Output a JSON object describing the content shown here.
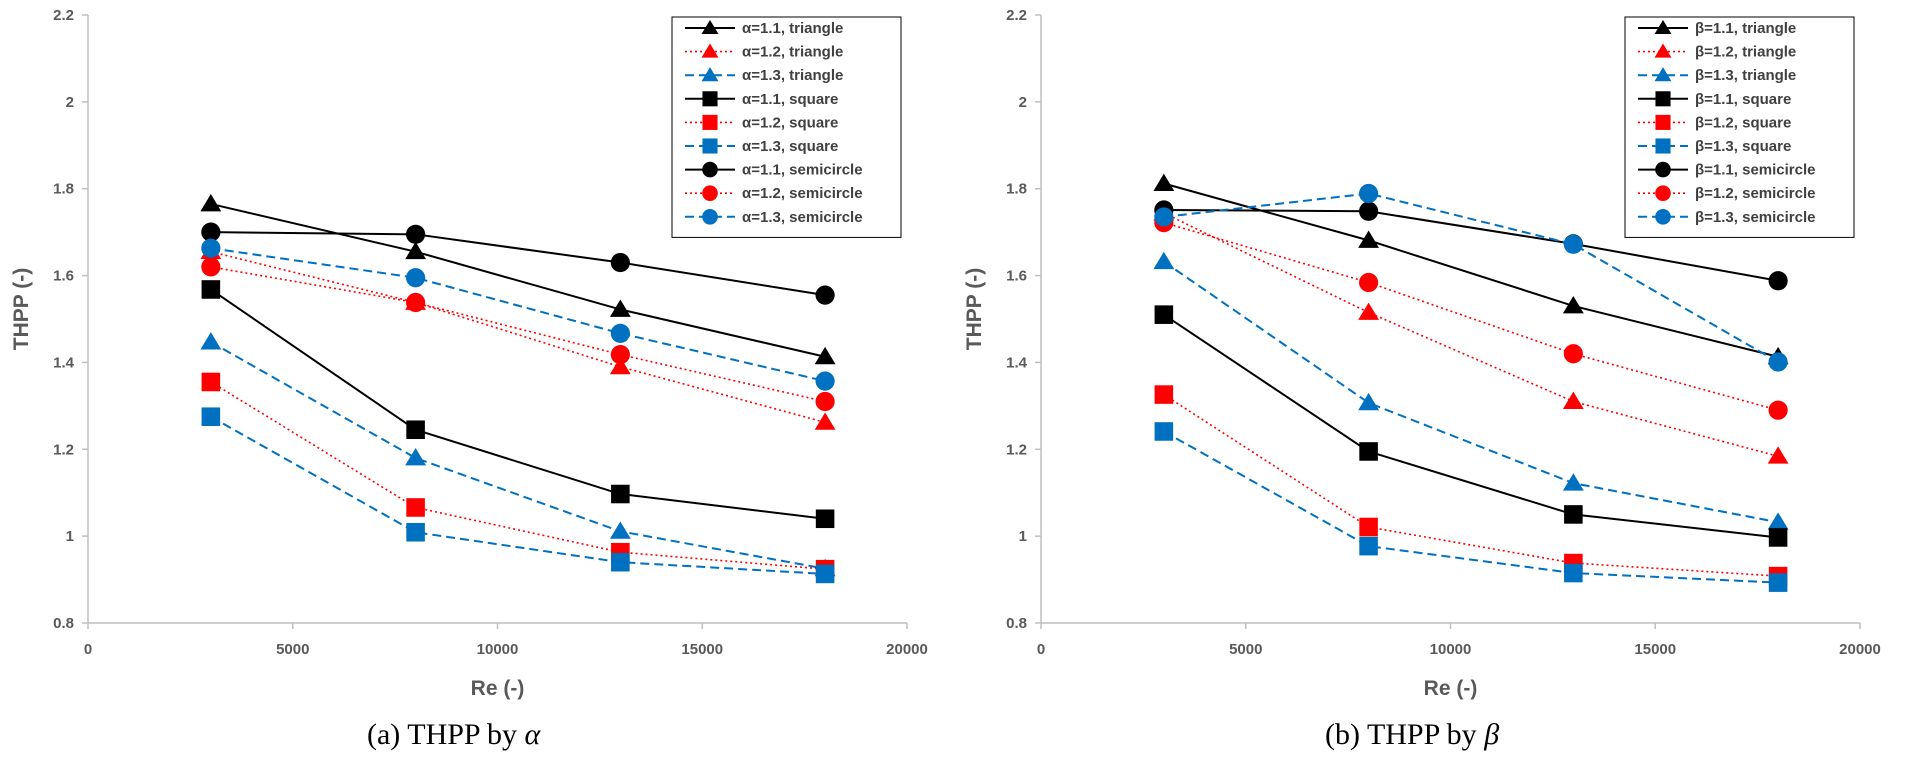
{
  "chart_data": [
    {
      "type": "line",
      "xlabel": "Re (-)",
      "ylabel": "THPP (-)",
      "xlim": [
        0,
        20000
      ],
      "ylim": [
        0.8,
        2.2
      ],
      "xticks": [
        0,
        5000,
        10000,
        15000,
        20000
      ],
      "xtick_labels": [
        "0",
        "5000",
        "10000",
        "15000",
        "20000"
      ],
      "yticks": [
        0.8,
        1.0,
        1.2,
        1.4,
        1.6,
        1.8,
        2.0,
        2.2
      ],
      "ytick_labels": [
        "0.8",
        "1",
        "1.2",
        "1.4",
        "1.6",
        "1.8",
        "2",
        "2.2"
      ],
      "grid": false,
      "legend_position": "top-right",
      "caption_main": "(a) THPP by ",
      "caption_var": "α",
      "x": [
        3000,
        8000,
        13000,
        18000
      ],
      "series": [
        {
          "name": "α=1.1, triangle",
          "values": [
            1.765,
            1.655,
            1.522,
            1.413
          ],
          "color": "#000000",
          "dash": "solid",
          "marker": "triangle"
        },
        {
          "name": "α=1.2, triangle",
          "values": [
            1.655,
            1.538,
            1.39,
            1.262
          ],
          "color": "#ff0000",
          "dash": "dotted",
          "marker": "triangle"
        },
        {
          "name": "α=1.3, triangle",
          "values": [
            1.447,
            1.18,
            1.011,
            0.925
          ],
          "color": "#0070c0",
          "dash": "dashed",
          "marker": "triangle"
        },
        {
          "name": "α=1.1, square",
          "values": [
            1.568,
            1.245,
            1.097,
            1.04
          ],
          "color": "#000000",
          "dash": "solid",
          "marker": "square"
        },
        {
          "name": "α=1.2, square",
          "values": [
            1.355,
            1.066,
            0.963,
            0.924
          ],
          "color": "#ff0000",
          "dash": "dotted",
          "marker": "square"
        },
        {
          "name": "α=1.3, square",
          "values": [
            1.275,
            1.009,
            0.94,
            0.913
          ],
          "color": "#0070c0",
          "dash": "dashed",
          "marker": "square"
        },
        {
          "name": "α=1.1, semicircle",
          "values": [
            1.7,
            1.695,
            1.63,
            1.555
          ],
          "color": "#000000",
          "dash": "solid",
          "marker": "circle"
        },
        {
          "name": "α=1.2, semicircle",
          "values": [
            1.62,
            1.538,
            1.418,
            1.31
          ],
          "color": "#ff0000",
          "dash": "dotted",
          "marker": "circle"
        },
        {
          "name": "α=1.3, semicircle",
          "values": [
            1.663,
            1.595,
            1.467,
            1.357
          ],
          "color": "#0070c0",
          "dash": "dashed",
          "marker": "circle"
        }
      ]
    },
    {
      "type": "line",
      "xlabel": "Re (-)",
      "ylabel": "THPP (-)",
      "xlim": [
        0,
        20000
      ],
      "ylim": [
        0.8,
        2.2
      ],
      "xticks": [
        0,
        5000,
        10000,
        15000,
        20000
      ],
      "xtick_labels": [
        "0",
        "5000",
        "10000",
        "15000",
        "20000"
      ],
      "yticks": [
        0.8,
        1.0,
        1.2,
        1.4,
        1.6,
        1.8,
        2.0,
        2.2
      ],
      "ytick_labels": [
        "0.8",
        "1",
        "1.2",
        "1.4",
        "1.6",
        "1.8",
        "2",
        "2.2"
      ],
      "grid": false,
      "legend_position": "top-right",
      "caption_main": "(b) THPP by ",
      "caption_var": "β",
      "x": [
        3000,
        8000,
        13000,
        18000
      ],
      "series": [
        {
          "name": "β=1.1, triangle",
          "values": [
            1.812,
            1.681,
            1.53,
            1.413
          ],
          "color": "#000000",
          "dash": "solid",
          "marker": "triangle"
        },
        {
          "name": "β=1.2, triangle",
          "values": [
            1.744,
            1.515,
            1.31,
            1.184
          ],
          "color": "#ff0000",
          "dash": "dotted",
          "marker": "triangle"
        },
        {
          "name": "β=1.3, triangle",
          "values": [
            1.632,
            1.307,
            1.122,
            1.032
          ],
          "color": "#0070c0",
          "dash": "dashed",
          "marker": "triangle"
        },
        {
          "name": "β=1.1, square",
          "values": [
            1.51,
            1.195,
            1.05,
            0.997
          ],
          "color": "#000000",
          "dash": "solid",
          "marker": "square"
        },
        {
          "name": "β=1.2, square",
          "values": [
            1.326,
            1.021,
            0.938,
            0.908
          ],
          "color": "#ff0000",
          "dash": "dotted",
          "marker": "square"
        },
        {
          "name": "β=1.3, square",
          "values": [
            1.241,
            0.977,
            0.915,
            0.893
          ],
          "color": "#0070c0",
          "dash": "dashed",
          "marker": "square"
        },
        {
          "name": "β=1.1, semicircle",
          "values": [
            1.751,
            1.748,
            1.673,
            1.588
          ],
          "color": "#000000",
          "dash": "solid",
          "marker": "circle"
        },
        {
          "name": "β=1.2, semicircle",
          "values": [
            1.722,
            1.584,
            1.42,
            1.29
          ],
          "color": "#ff0000",
          "dash": "dotted",
          "marker": "circle"
        },
        {
          "name": "β=1.3, semicircle",
          "values": [
            1.735,
            1.789,
            1.672,
            1.401
          ],
          "color": "#0070c0",
          "dash": "dashed",
          "marker": "circle"
        }
      ]
    }
  ]
}
